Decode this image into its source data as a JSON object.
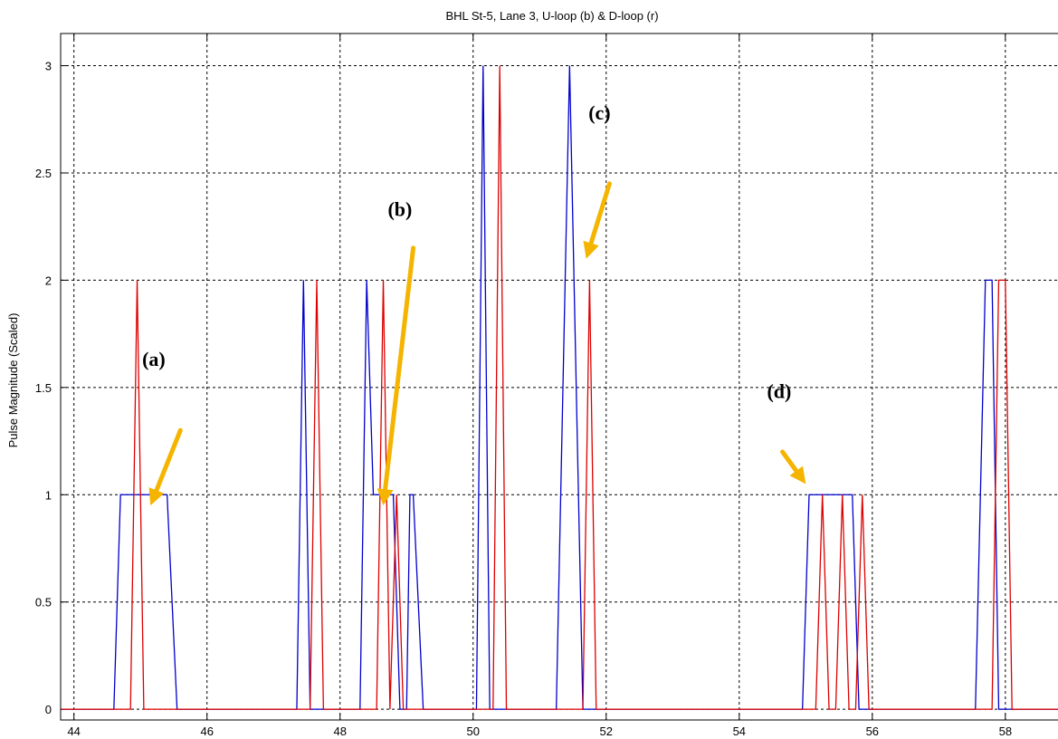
{
  "chart_data": {
    "type": "line",
    "title": "BHL St-5, Lane 3, U-loop (b) & D-loop (r)",
    "xlabel": "",
    "ylabel": "Pulse Magnitude (Scaled)",
    "xlim": [
      43.8,
      58.9
    ],
    "ylim": [
      -0.05,
      3.15
    ],
    "x_ticks": [
      "44",
      "46",
      "48",
      "50",
      "52",
      "54",
      "56",
      "58"
    ],
    "y_ticks": [
      "0",
      "0.5",
      "1",
      "1.5",
      "2",
      "2.5",
      "3"
    ],
    "grid": true,
    "series": [
      {
        "color": "#0000cc",
        "x": [
          43.8,
          44.6,
          44.7,
          45.4,
          45.55,
          47.35,
          47.45,
          47.55,
          48.3,
          48.4,
          48.5,
          48.8,
          48.9,
          49.0,
          49.05,
          49.1,
          49.25,
          50.05,
          50.15,
          50.25,
          51.25,
          51.45,
          51.65,
          54.95,
          55.05,
          55.7,
          55.8,
          57.55,
          57.7,
          57.8,
          57.9,
          58.9
        ],
        "y": [
          0,
          0,
          1,
          1,
          0,
          0,
          2,
          0,
          0,
          2,
          1,
          1,
          0,
          0,
          1,
          1,
          0,
          0,
          3,
          0,
          0,
          3,
          0,
          0,
          1,
          1,
          0,
          0,
          2,
          2,
          0,
          0
        ]
      },
      {
        "color": "#dd0000",
        "x": [
          43.8,
          44.85,
          44.95,
          45.05,
          47.55,
          47.65,
          47.75,
          48.55,
          48.65,
          48.75,
          48.85,
          48.95,
          50.3,
          50.4,
          50.5,
          51.65,
          51.75,
          51.85,
          55.15,
          55.25,
          55.35,
          55.45,
          55.55,
          55.65,
          55.75,
          55.85,
          55.95,
          56.05,
          57.8,
          57.9,
          58.0,
          58.1,
          58.9
        ],
        "y": [
          0,
          0,
          2,
          0,
          0,
          2,
          0,
          0,
          2,
          0,
          1,
          0,
          0,
          3,
          0,
          0,
          2,
          0,
          0,
          1,
          0,
          0,
          1,
          0,
          0,
          1,
          0,
          0,
          0,
          2,
          2,
          0,
          0
        ]
      }
    ],
    "annotations": [
      {
        "label": "(a)",
        "text_x": 45.2,
        "text_y": 1.6,
        "arrow_from": [
          45.6,
          1.3
        ],
        "arrow_to": [
          45.15,
          0.95
        ]
      },
      {
        "label": "(b)",
        "text_x": 48.9,
        "text_y": 2.3,
        "arrow_from": [
          49.1,
          2.15
        ],
        "arrow_to": [
          48.65,
          0.95
        ]
      },
      {
        "label": "(c)",
        "text_x": 51.9,
        "text_y": 2.75,
        "arrow_from": [
          52.05,
          2.45
        ],
        "arrow_to": [
          51.7,
          2.1
        ]
      },
      {
        "label": "(d)",
        "text_x": 54.6,
        "text_y": 1.45,
        "arrow_from": [
          54.65,
          1.2
        ],
        "arrow_to": [
          55.0,
          1.05
        ]
      }
    ],
    "arrow_color": "#f5b400"
  }
}
